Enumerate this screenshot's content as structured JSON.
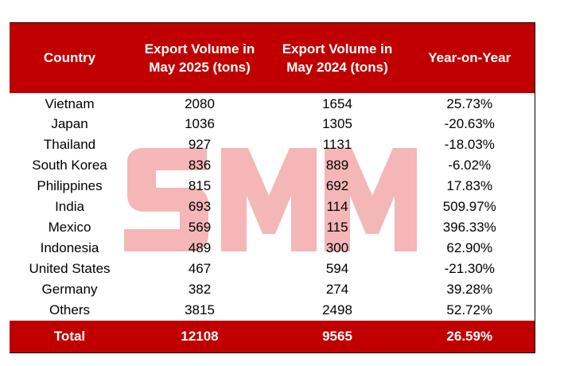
{
  "table": {
    "headers": [
      "Country",
      "Export Volume in May 2025 (tons)",
      "Export Volume in May 2024 (tons)",
      "Year-on-Year"
    ],
    "rows": [
      {
        "country": "Vietnam",
        "may_2025": "2080",
        "may_2024": "1654",
        "yoy": "25.73%"
      },
      {
        "country": "Japan",
        "may_2025": "1036",
        "may_2024": "1305",
        "yoy": "-20.63%"
      },
      {
        "country": "Thailand",
        "may_2025": "927",
        "may_2024": "1131",
        "yoy": "-18.03%"
      },
      {
        "country": "South Korea",
        "may_2025": "836",
        "may_2024": "889",
        "yoy": "-6.02%"
      },
      {
        "country": "Philippines",
        "may_2025": "815",
        "may_2024": "692",
        "yoy": "17.83%"
      },
      {
        "country": "India",
        "may_2025": "693",
        "may_2024": "114",
        "yoy": "509.97%"
      },
      {
        "country": "Mexico",
        "may_2025": "569",
        "may_2024": "115",
        "yoy": "396.33%"
      },
      {
        "country": "Indonesia",
        "may_2025": "489",
        "may_2024": "300",
        "yoy": "62.90%"
      },
      {
        "country": "United States",
        "may_2025": "467",
        "may_2024": "594",
        "yoy": "-21.30%"
      },
      {
        "country": "Germany",
        "may_2025": "382",
        "may_2024": "274",
        "yoy": "39.28%"
      },
      {
        "country": "Others",
        "may_2025": "3815",
        "may_2024": "2498",
        "yoy": "52.72%"
      }
    ],
    "total": {
      "country": "Total",
      "may_2025": "12108",
      "may_2024": "9565",
      "yoy": "26.59%"
    }
  },
  "watermark": {
    "text": "SMM",
    "color": "#f4b6b6"
  },
  "colors": {
    "header_bg": "#c00000",
    "header_text": "#ffffff"
  }
}
